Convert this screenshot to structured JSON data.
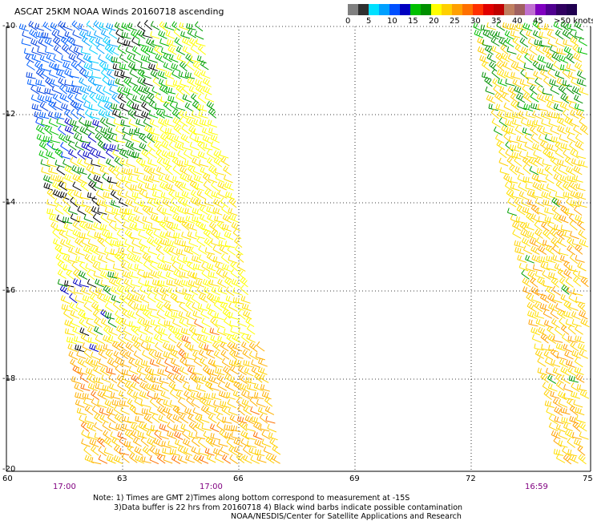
{
  "title": "ASCAT 25KM NOAA Winds 20160718 ascending",
  "legend": {
    "units_label": ">50 knots",
    "colors": [
      "#808080",
      "#303030",
      "#00e0ff",
      "#00a0ff",
      "#0050ff",
      "#0000c0",
      "#00c000",
      "#009000",
      "#ffff00",
      "#ffd000",
      "#ffa000",
      "#ff7000",
      "#ff3000",
      "#e00000",
      "#c00000",
      "#c08060",
      "#a06060",
      "#c070d0",
      "#8000c0",
      "#500090",
      "#300060",
      "#200050"
    ],
    "labels": [
      "0",
      "5",
      "10",
      "15",
      "20",
      "25",
      "30",
      "35",
      "40",
      "45",
      ">50 knots"
    ]
  },
  "map": {
    "lat_labels": [
      "-10",
      "-12",
      "-14",
      "-16",
      "-18",
      "-20"
    ],
    "lon_labels": [
      "60",
      "63",
      "66",
      "69",
      "72",
      "75"
    ],
    "time_labels": [
      "17:00",
      "17:00",
      "16:59"
    ]
  },
  "notes": [
    "Note: 1) Times are GMT 2)Times along bottom correspond to measurement at -15S",
    "3)Data buffer is 22 hrs from 20160718 4) Black wind barbs indicate possible contamination",
    "NOAA/NESDIS/Center for Satellite Applications and Research"
  ]
}
